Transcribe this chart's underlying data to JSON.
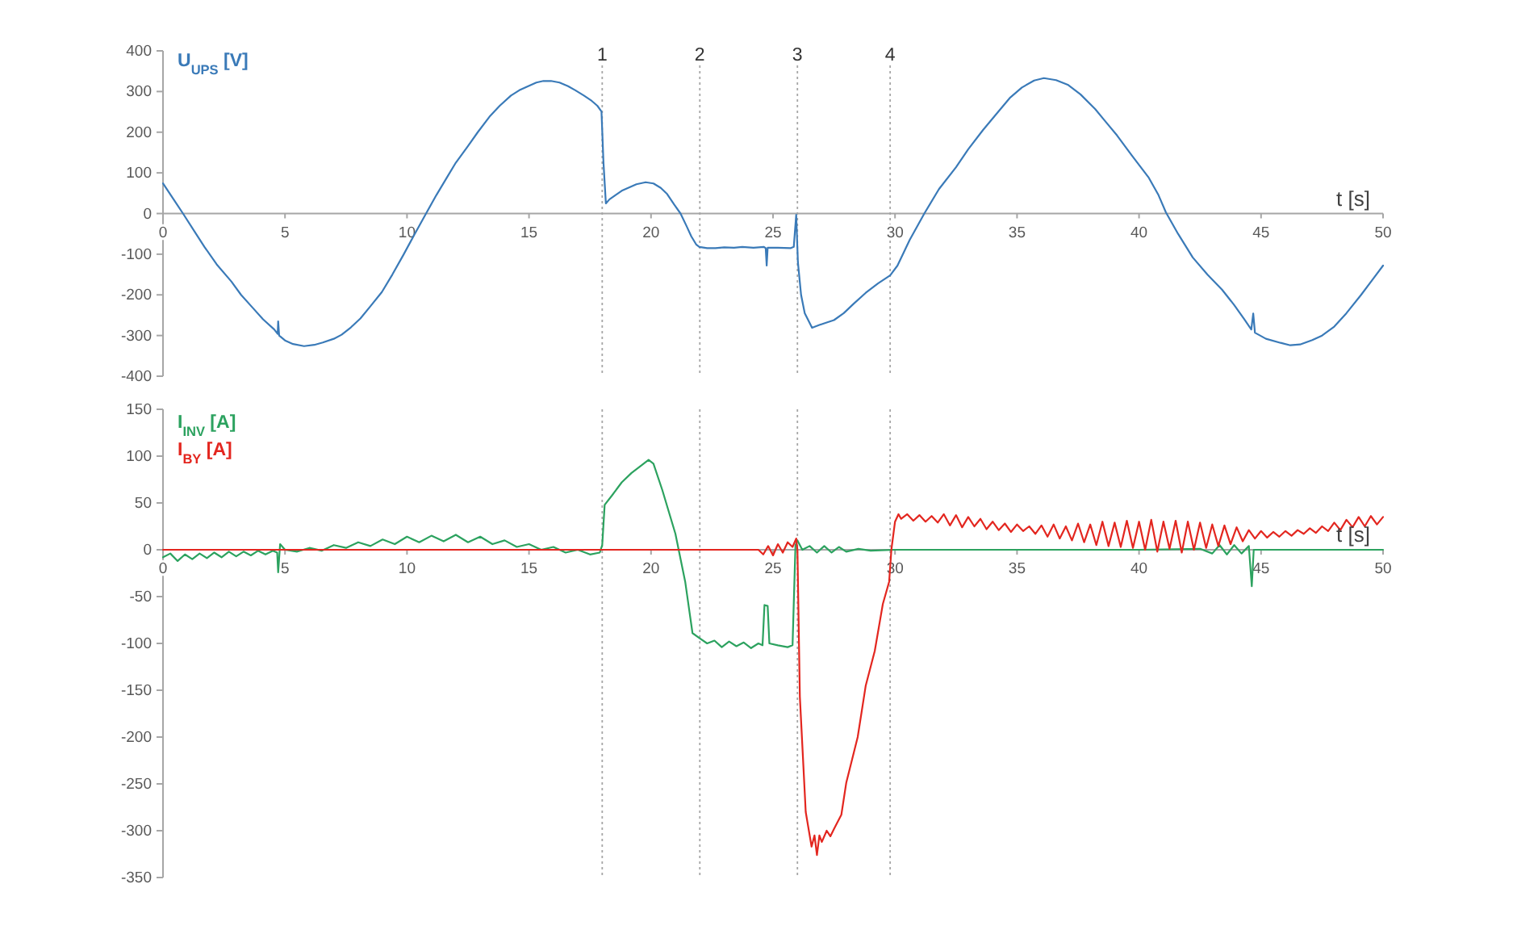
{
  "chart_data": [
    {
      "type": "line",
      "ylabel": "U$_{UPS}$ [V]",
      "xlabel": "t [s]",
      "xlim": [
        0,
        50
      ],
      "ylim": [
        -400,
        400
      ],
      "xticks": [
        0,
        5,
        10,
        15,
        20,
        25,
        30,
        35,
        40,
        45,
        50
      ],
      "yticks": [
        -400,
        -300,
        -200,
        -100,
        0,
        100,
        200,
        300,
        400
      ],
      "annotations": [
        "1",
        "2",
        "3",
        "4"
      ],
      "ref_lines": [
        {
          "axis": "x",
          "value": 18,
          "color": "#a6a6a6",
          "line_style": "dotted"
        },
        {
          "axis": "x",
          "value": 22,
          "color": "#a6a6a6",
          "line_style": "dotted"
        },
        {
          "axis": "x",
          "value": 26,
          "color": "#a6a6a6",
          "line_style": "dotted"
        },
        {
          "axis": "x",
          "value": 29.8,
          "color": "#a6a6a6",
          "line_style": "dotted"
        }
      ],
      "x": [
        0,
        0.4,
        0.82,
        1.3,
        1.7,
        2.2,
        2.8,
        3.2,
        3.68,
        4.1,
        4.56,
        4.7,
        4.72,
        4.76,
        5.0,
        5.33,
        5.78,
        6.2,
        6.55,
        7.0,
        7.32,
        7.7,
        8.09,
        8.5,
        8.97,
        9.4,
        9.85,
        10.3,
        10.78,
        11.2,
        11.62,
        12.0,
        12.5,
        12.9,
        13.38,
        13.8,
        14.26,
        14.6,
        14.93,
        15.3,
        15.59,
        15.9,
        16.25,
        16.6,
        16.9,
        17.25,
        17.57,
        17.8,
        17.97,
        18.05,
        18.15,
        18.3,
        18.56,
        18.8,
        19.1,
        19.4,
        19.78,
        20.1,
        20.4,
        20.66,
        20.95,
        21.21,
        21.45,
        21.65,
        21.85,
        21.98,
        22.3,
        22.64,
        23.0,
        23.4,
        23.74,
        24.2,
        24.62,
        24.7,
        24.74,
        24.78,
        25.2,
        25.73,
        25.85,
        25.95,
        26.02,
        26.15,
        26.3,
        26.6,
        26.9,
        27.2,
        27.5,
        27.9,
        28.3,
        28.8,
        29.3,
        29.8,
        30.1,
        30.6,
        31.2,
        31.8,
        32.5,
        33.0,
        33.6,
        34.2,
        34.7,
        35.2,
        35.7,
        36.1,
        36.6,
        37.1,
        37.6,
        38.2,
        38.6,
        39.1,
        39.7,
        40.4,
        40.8,
        41.1,
        41.6,
        42.2,
        42.8,
        43.4,
        43.9,
        44.3,
        44.6,
        44.68,
        44.75,
        45.2,
        45.8,
        46.2,
        46.6,
        47.1,
        47.5,
        48.0,
        48.5,
        49.1,
        49.6,
        50
      ],
      "series": [
        {
          "color": "#3a7ab8",
          "values": [
            74,
            38,
            0,
            -45,
            -82,
            -125,
            -167,
            -200,
            -232,
            -260,
            -285,
            -296,
            -265,
            -300,
            -312,
            -321,
            -326,
            -323,
            -317,
            -308,
            -298,
            -280,
            -258,
            -228,
            -193,
            -150,
            -102,
            -52,
            0,
            45,
            87,
            125,
            166,
            200,
            238,
            265,
            290,
            303,
            312,
            322,
            326,
            326,
            322,
            313,
            303,
            290,
            277,
            265,
            251,
            127,
            25,
            35,
            46,
            56,
            64,
            72,
            77,
            74,
            63,
            48,
            22,
            0,
            -30,
            -56,
            -76,
            -82,
            -85,
            -85,
            -83,
            -84,
            -82,
            -84,
            -82,
            -85,
            -128,
            -84,
            -84,
            -85,
            -82,
            -3,
            -120,
            -200,
            -245,
            -281,
            -274,
            -268,
            -262,
            -245,
            -222,
            -195,
            -172,
            -152,
            -128,
            -65,
            0,
            60,
            114,
            158,
            205,
            248,
            284,
            310,
            327,
            333,
            328,
            316,
            293,
            257,
            228,
            192,
            143,
            88,
            45,
            3,
            -50,
            -108,
            -150,
            -187,
            -225,
            -259,
            -285,
            -246,
            -293,
            -308,
            -318,
            -324,
            -322,
            -311,
            -300,
            -278,
            -245,
            -200,
            -160,
            -128
          ]
        }
      ]
    },
    {
      "type": "line",
      "xlabel": "t [s]",
      "xlim": [
        0,
        50
      ],
      "ylim": [
        -350,
        150
      ],
      "xticks": [
        0,
        5,
        10,
        15,
        20,
        25,
        30,
        35,
        40,
        45,
        50
      ],
      "yticks": [
        -350,
        -300,
        -250,
        -200,
        -150,
        -100,
        -50,
        0,
        50,
        100,
        150
      ],
      "legend": "top left",
      "ref_lines": [
        {
          "axis": "x",
          "value": 18,
          "color": "#a6a6a6",
          "line_style": "dotted"
        },
        {
          "axis": "x",
          "value": 22,
          "color": "#a6a6a6",
          "line_style": "dotted"
        },
        {
          "axis": "x",
          "value": 26,
          "color": "#a6a6a6",
          "line_style": "dotted"
        },
        {
          "axis": "x",
          "value": 29.8,
          "color": "#a6a6a6",
          "line_style": "dotted"
        }
      ],
      "series": [
        {
          "name": "I$_{INV}$ [A]",
          "color": "#2ca25f",
          "x": [
            0,
            0.3,
            0.6,
            0.9,
            1.2,
            1.5,
            1.8,
            2.1,
            2.4,
            2.7,
            3.0,
            3.3,
            3.6,
            3.9,
            4.2,
            4.5,
            4.68,
            4.72,
            4.8,
            5.0,
            5.5,
            6.0,
            6.5,
            7.0,
            7.5,
            8.0,
            8.5,
            9.0,
            9.5,
            10.0,
            10.5,
            11.0,
            11.5,
            12.0,
            12.5,
            13.0,
            13.5,
            14.0,
            14.5,
            15.0,
            15.5,
            16.0,
            16.5,
            17.0,
            17.5,
            17.9,
            18.0,
            18.1,
            18.4,
            18.8,
            19.2,
            19.6,
            19.9,
            20.1,
            20.46,
            21.0,
            21.4,
            21.7,
            21.97,
            22.3,
            22.6,
            22.9,
            23.2,
            23.5,
            23.8,
            24.1,
            24.4,
            24.57,
            24.65,
            24.78,
            24.85,
            25.2,
            25.6,
            25.8,
            25.92,
            26.0,
            26.2,
            26.5,
            26.8,
            27.1,
            27.4,
            27.7,
            28.0,
            28.5,
            29.0,
            30,
            35,
            40,
            42.5,
            43.0,
            43.3,
            43.6,
            43.9,
            44.2,
            44.5,
            44.62,
            44.7,
            50
          ],
          "values": [
            -8,
            -4,
            -12,
            -5,
            -10,
            -4,
            -9,
            -3,
            -8,
            -2,
            -7,
            -2,
            -6,
            -1,
            -5,
            -1,
            -3,
            -24,
            6,
            0,
            -2,
            2,
            -1,
            5,
            2,
            8,
            4,
            11,
            6,
            14,
            8,
            15,
            9,
            16,
            8,
            14,
            6,
            10,
            3,
            6,
            0,
            3,
            -3,
            0,
            -5,
            -3,
            5,
            48,
            58,
            72,
            82,
            90,
            96,
            92,
            64,
            17,
            -34,
            -89,
            -94,
            -100,
            -97,
            -104,
            -98,
            -103,
            -99,
            -105,
            -100,
            -102,
            -59,
            -60,
            -100,
            -102,
            -104,
            -102,
            5,
            10,
            0,
            4,
            -3,
            4,
            -3,
            3,
            -2,
            1,
            -1,
            0,
            0,
            0,
            1,
            -4,
            5,
            -5,
            5,
            -4,
            4,
            -39,
            0,
            0
          ]
        },
        {
          "name": "I$_{BY}$ [A]",
          "color": "#e3261f",
          "x": [
            0,
            24.4,
            24.6,
            24.8,
            25.0,
            25.2,
            25.4,
            25.6,
            25.8,
            25.95,
            26.0,
            26.1,
            26.34,
            26.58,
            26.7,
            26.8,
            26.9,
            27.0,
            27.2,
            27.35,
            27.5,
            27.8,
            28.0,
            28.47,
            28.8,
            29.17,
            29.5,
            29.76,
            29.85,
            30.0,
            30.14,
            30.25,
            30.5,
            30.75,
            31.0,
            31.25,
            31.5,
            31.75,
            32.0,
            32.25,
            32.5,
            32.75,
            33.0,
            33.25,
            33.5,
            33.75,
            34.0,
            34.25,
            34.5,
            34.75,
            35.0,
            35.25,
            35.5,
            35.75,
            36.0,
            36.25,
            36.5,
            36.75,
            37.0,
            37.25,
            37.5,
            37.75,
            38.0,
            38.25,
            38.5,
            38.75,
            39.0,
            39.25,
            39.5,
            39.75,
            40.0,
            40.25,
            40.5,
            40.75,
            41.0,
            41.25,
            41.5,
            41.75,
            42.0,
            42.25,
            42.5,
            42.75,
            43.0,
            43.25,
            43.5,
            43.75,
            44.0,
            44.25,
            44.5,
            44.75,
            45.0,
            45.25,
            45.5,
            45.75,
            46.0,
            46.25,
            46.5,
            46.75,
            47.0,
            47.25,
            47.5,
            47.75,
            48.0,
            48.25,
            48.5,
            48.75,
            49.0,
            49.25,
            49.5,
            49.75,
            50.0
          ],
          "values": [
            0,
            0,
            -5,
            4,
            -6,
            6,
            -3,
            8,
            3,
            12,
            0,
            -157,
            -280,
            -317,
            -305,
            -326,
            -305,
            -312,
            -300,
            -306,
            -298,
            -283,
            -249,
            -200,
            -145,
            -108,
            -58,
            -34,
            0,
            30,
            38,
            33,
            38,
            31,
            37,
            30,
            36,
            29,
            38,
            26,
            37,
            24,
            35,
            25,
            33,
            22,
            30,
            21,
            28,
            19,
            27,
            20,
            25,
            17,
            26,
            14,
            27,
            12,
            25,
            10,
            28,
            8,
            27,
            5,
            30,
            4,
            29,
            3,
            31,
            2,
            30,
            0,
            32,
            -2,
            30,
            1,
            31,
            -3,
            30,
            0,
            29,
            2,
            27,
            4,
            26,
            6,
            24,
            9,
            21,
            12,
            20,
            13,
            19,
            14,
            20,
            15,
            21,
            17,
            23,
            18,
            25,
            20,
            29,
            21,
            32,
            24,
            35,
            25,
            36,
            27,
            35
          ]
        }
      ]
    }
  ]
}
